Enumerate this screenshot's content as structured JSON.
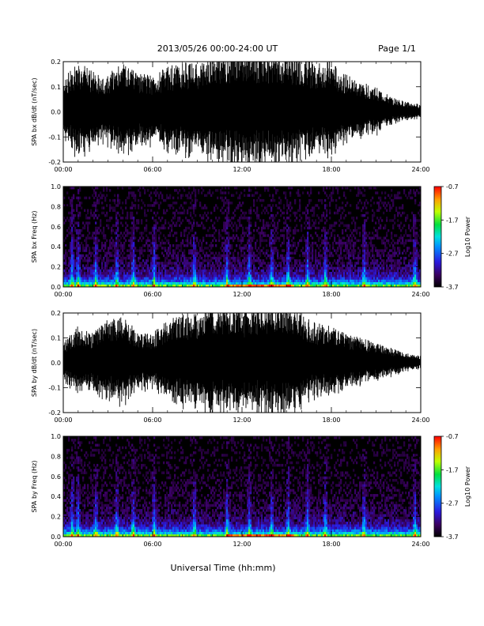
{
  "header": {
    "title": "2013/05/26  00:00-24:00 UT",
    "page": "Page 1/1"
  },
  "footer": {
    "xlabel": "Universal Time (hh:mm)"
  },
  "chart_data": [
    {
      "type": "line",
      "ylabel": "SPA bx dB/dt (nT/sec)",
      "xlim": [
        "00:00",
        "24:00"
      ],
      "ylim": [
        -0.2,
        0.2
      ],
      "x_ticks": [
        "00:00",
        "06:00",
        "12:00",
        "18:00",
        "24:00"
      ],
      "y_ticks": [
        "-0.2",
        "-0.1",
        "0.0",
        "0.1",
        "0.2"
      ],
      "envelope_hours": [
        0,
        1,
        2,
        3,
        4,
        5,
        6,
        7,
        8,
        9,
        10,
        11,
        12,
        13,
        14,
        15,
        16,
        17,
        18,
        19,
        20,
        21,
        22,
        23,
        24
      ],
      "envelope_amplitude": [
        0.14,
        0.2,
        0.16,
        0.15,
        0.2,
        0.15,
        0.15,
        0.18,
        0.2,
        0.2,
        0.22,
        0.25,
        0.25,
        0.25,
        0.25,
        0.25,
        0.22,
        0.2,
        0.2,
        0.15,
        0.12,
        0.1,
        0.06,
        0.04,
        0.03
      ]
    },
    {
      "type": "heatmap",
      "ylabel": "SPA bx Freq (Hz)",
      "xlim": [
        "00:00",
        "24:00"
      ],
      "ylim": [
        0.0,
        1.0
      ],
      "x_ticks": [
        "00:00",
        "06:00",
        "12:00",
        "18:00",
        "24:00"
      ],
      "y_ticks": [
        "0.0",
        "0.2",
        "0.4",
        "0.6",
        "0.8",
        "1.0"
      ],
      "colorbar": {
        "label": "Log10 Power",
        "ticks": [
          "-0.7",
          "-1.7",
          "-2.7",
          "-3.7"
        ],
        "range": [
          -3.7,
          -0.7
        ]
      },
      "burst_hours": [
        0.6,
        1.0,
        2.2,
        3.6,
        4.7,
        6.1,
        8.8,
        11.0,
        12.5,
        14.0,
        15.1,
        16.4,
        17.6,
        20.2,
        23.6
      ]
    },
    {
      "type": "line",
      "ylabel": "SPA by dB/dt (nT/sec)",
      "xlim": [
        "00:00",
        "24:00"
      ],
      "ylim": [
        -0.2,
        0.2
      ],
      "x_ticks": [
        "00:00",
        "06:00",
        "12:00",
        "18:00",
        "24:00"
      ],
      "y_ticks": [
        "-0.2",
        "-0.1",
        "0.0",
        "0.1",
        "0.2"
      ],
      "envelope_hours": [
        0,
        1,
        2,
        3,
        4,
        5,
        6,
        7,
        8,
        9,
        10,
        11,
        12,
        13,
        14,
        15,
        16,
        17,
        18,
        19,
        20,
        21,
        22,
        23,
        24
      ],
      "envelope_amplitude": [
        0.08,
        0.15,
        0.12,
        0.18,
        0.2,
        0.12,
        0.12,
        0.18,
        0.2,
        0.2,
        0.25,
        0.25,
        0.22,
        0.25,
        0.25,
        0.25,
        0.2,
        0.16,
        0.16,
        0.12,
        0.1,
        0.08,
        0.06,
        0.04,
        0.03
      ]
    },
    {
      "type": "heatmap",
      "ylabel": "SPA by Freq (Hz)",
      "xlim": [
        "00:00",
        "24:00"
      ],
      "ylim": [
        0.0,
        1.0
      ],
      "x_ticks": [
        "00:00",
        "06:00",
        "12:00",
        "18:00",
        "24:00"
      ],
      "y_ticks": [
        "0.0",
        "0.2",
        "0.4",
        "0.6",
        "0.8",
        "1.0"
      ],
      "colorbar": {
        "label": "Log10 Power",
        "ticks": [
          "-0.7",
          "-1.7",
          "-2.7",
          "-3.7"
        ],
        "range": [
          -3.7,
          -0.7
        ]
      },
      "burst_hours": [
        0.6,
        1.0,
        2.2,
        3.6,
        4.7,
        6.1,
        8.8,
        11.0,
        12.5,
        14.0,
        15.1,
        16.4,
        17.6,
        20.2,
        23.6
      ]
    }
  ]
}
